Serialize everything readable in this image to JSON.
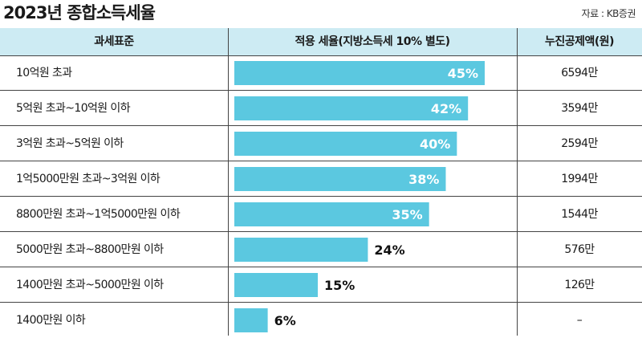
{
  "title": "2023년 종합소득세율",
  "source": "자료 : KB증권",
  "headers": {
    "bracket": "과세표준",
    "rate": "적용 세율(지방소득세 10% 별도)",
    "deduction": "누진공제액(원)"
  },
  "colors": {
    "bar": "#5bc8e0",
    "header_bg": "#cdebf3",
    "label_inside": "#ffffff",
    "label_outside": "#111111"
  },
  "chart_data": {
    "type": "bar",
    "orientation": "horizontal",
    "title": "2023년 종합소득세율",
    "categories": [
      "10억원 초과",
      "5억원 초과~10억원 이하",
      "3억원 초과~5억원 이하",
      "1억5000만원 초과~3억원 이하",
      "8800만원 초과~1억5000만원 이하",
      "5000만원 초과~8800만원 이하",
      "1400만원 초과~5000만원 이하",
      "1400만원 이하"
    ],
    "values": [
      45,
      42,
      40,
      38,
      35,
      24,
      15,
      6
    ],
    "value_labels": [
      "45%",
      "42%",
      "40%",
      "38%",
      "35%",
      "24%",
      "15%",
      "6%"
    ],
    "deductions": [
      "6594만",
      "3594만",
      "2594만",
      "1994만",
      "1544만",
      "576만",
      "126만",
      "–"
    ],
    "xlim": [
      0,
      46
    ],
    "grid": false
  }
}
